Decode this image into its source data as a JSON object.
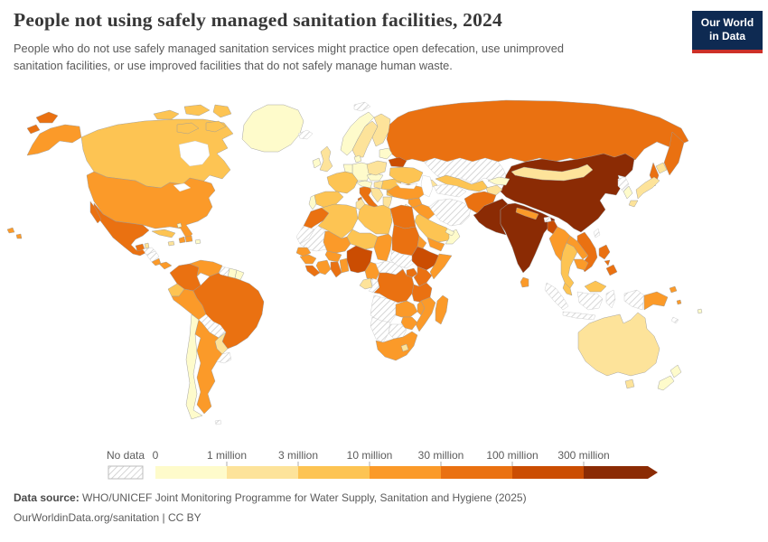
{
  "header": {
    "title": "People not using safely managed sanitation facilities, 2024",
    "subtitle_lines": [
      "People who do not use safely managed sanitation services might practice open defecation, use unimproved",
      "sanitation facilities, or use improved facilities that do not safely manage human waste."
    ],
    "logo": {
      "line1": "Our World",
      "line2": "in Data",
      "bg_color": "#0E2A52",
      "accent_color": "#CD3028"
    }
  },
  "chart_data": {
    "type": "choropleth_map",
    "title": "People not using safely managed sanitation facilities",
    "year": "2024",
    "unit": "people",
    "legend": {
      "no_data_label": "No data",
      "tick_labels": [
        "0",
        "1 million",
        "3 million",
        "10 million",
        "30 million",
        "100 million",
        "300 million"
      ],
      "colors": [
        "#FEFBCB",
        "#FDE39A",
        "#FDC453",
        "#FB9A29",
        "#EA7111",
        "#CB4D02",
        "#8B2B04"
      ],
      "no_data_pattern": "diagonal-hatch",
      "position": "bottom"
    },
    "countries": [
      {
        "name": "Russia",
        "bucket": 4
      },
      {
        "name": "Kazakhstan",
        "bucket": -1
      },
      {
        "name": "China",
        "bucket": 6
      },
      {
        "name": "Mongolia",
        "bucket": 1
      },
      {
        "name": "Canada",
        "bucket": 2
      },
      {
        "name": "United States",
        "bucket": 3
      },
      {
        "name": "Greenland",
        "bucket": 0
      },
      {
        "name": "Svalbard",
        "bucket": -1
      },
      {
        "name": "Iceland",
        "bucket": -1
      },
      {
        "name": "Mexico",
        "bucket": 4
      },
      {
        "name": "Guatemala",
        "bucket": 4
      },
      {
        "name": "Belize",
        "bucket": 1
      },
      {
        "name": "Honduras",
        "bucket": -1
      },
      {
        "name": "Nicaragua",
        "bucket": -1
      },
      {
        "name": "Costa Rica",
        "bucket": 3
      },
      {
        "name": "Panama",
        "bucket": 3
      },
      {
        "name": "Cuba",
        "bucket": 2
      },
      {
        "name": "Jamaica",
        "bucket": 1
      },
      {
        "name": "Haiti",
        "bucket": 3
      },
      {
        "name": "Dominican Republic",
        "bucket": 3
      },
      {
        "name": "Puerto Rico",
        "bucket": 0
      },
      {
        "name": "Bahamas",
        "bucket": 0
      },
      {
        "name": "Colombia",
        "bucket": 4
      },
      {
        "name": "Venezuela",
        "bucket": 3
      },
      {
        "name": "Guyana",
        "bucket": -1
      },
      {
        "name": "Suriname",
        "bucket": 0
      },
      {
        "name": "French Guiana",
        "bucket": 0
      },
      {
        "name": "Ecuador",
        "bucket": 2
      },
      {
        "name": "Peru",
        "bucket": 3
      },
      {
        "name": "Brazil",
        "bucket": 4
      },
      {
        "name": "Bolivia",
        "bucket": -1
      },
      {
        "name": "Paraguay",
        "bucket": 1
      },
      {
        "name": "Chile",
        "bucket": 0
      },
      {
        "name": "Argentina",
        "bucket": 3
      },
      {
        "name": "Uruguay",
        "bucket": -1
      },
      {
        "name": "Falkland Islands",
        "bucket": -1
      },
      {
        "name": "Norway",
        "bucket": 0
      },
      {
        "name": "Sweden",
        "bucket": 1
      },
      {
        "name": "Finland",
        "bucket": 1
      },
      {
        "name": "United Kingdom",
        "bucket": 1
      },
      {
        "name": "Ireland",
        "bucket": 0
      },
      {
        "name": "Denmark",
        "bucket": 0
      },
      {
        "name": "Germany",
        "bucket": 0
      },
      {
        "name": "Benelux",
        "bucket": 0
      },
      {
        "name": "France",
        "bucket": 2
      },
      {
        "name": "Spain",
        "bucket": 2
      },
      {
        "name": "Portugal",
        "bucket": 0
      },
      {
        "name": "Italy",
        "bucket": 4
      },
      {
        "name": "Switzerland",
        "bucket": 0
      },
      {
        "name": "Czechia",
        "bucket": 0
      },
      {
        "name": "Poland",
        "bucket": 1
      },
      {
        "name": "Hungary",
        "bucket": 1
      },
      {
        "name": "Serbia",
        "bucket": 1
      },
      {
        "name": "Greece",
        "bucket": 1
      },
      {
        "name": "Romania",
        "bucket": 2
      },
      {
        "name": "Bulgaria",
        "bucket": 2
      },
      {
        "name": "Baltic states",
        "bucket": 0
      },
      {
        "name": "Belarus",
        "bucket": 5
      },
      {
        "name": "Ukraine",
        "bucket": 2
      },
      {
        "name": "Turkey",
        "bucket": 3
      },
      {
        "name": "Syria",
        "bucket": 3
      },
      {
        "name": "Jordan",
        "bucket": 0
      },
      {
        "name": "Iraq",
        "bucket": 3
      },
      {
        "name": "Iran",
        "bucket": -1
      },
      {
        "name": "Saudi Arabia",
        "bucket": 2
      },
      {
        "name": "Yemen",
        "bucket": 3
      },
      {
        "name": "Oman",
        "bucket": 0
      },
      {
        "name": "United Arab Emirates",
        "bucket": 0
      },
      {
        "name": "Azerbaijan",
        "bucket": 1
      },
      {
        "name": "Uzbekistan",
        "bucket": 2
      },
      {
        "name": "Turkmenistan",
        "bucket": -1
      },
      {
        "name": "Kyrgyzstan",
        "bucket": 0
      },
      {
        "name": "Tajikistan",
        "bucket": 1
      },
      {
        "name": "Afghanistan",
        "bucket": 4
      },
      {
        "name": "Pakistan",
        "bucket": 6
      },
      {
        "name": "India",
        "bucket": 6
      },
      {
        "name": "Nepal",
        "bucket": 3
      },
      {
        "name": "Bhutan",
        "bucket": -1
      },
      {
        "name": "Bangladesh",
        "bucket": 5
      },
      {
        "name": "Sri Lanka",
        "bucket": 3
      },
      {
        "name": "Myanmar",
        "bucket": 3
      },
      {
        "name": "Thailand",
        "bucket": 2
      },
      {
        "name": "Laos",
        "bucket": 3
      },
      {
        "name": "Vietnam",
        "bucket": 4
      },
      {
        "name": "Cambodia",
        "bucket": 3
      },
      {
        "name": "Malaysia",
        "bucket": 2
      },
      {
        "name": "Indonesia",
        "bucket": -1
      },
      {
        "name": "Philippines",
        "bucket": 4
      },
      {
        "name": "Taiwan",
        "bucket": -1
      },
      {
        "name": "North Korea",
        "bucket": -1
      },
      {
        "name": "South Korea",
        "bucket": 0
      },
      {
        "name": "Japan",
        "bucket": 1
      },
      {
        "name": "Papua New Guinea",
        "bucket": 3
      },
      {
        "name": "Solomon Islands",
        "bucket": 3
      },
      {
        "name": "Fiji",
        "bucket": 0
      },
      {
        "name": "New Caledonia",
        "bucket": -1
      },
      {
        "name": "Australia",
        "bucket": 1
      },
      {
        "name": "New Zealand",
        "bucket": 0
      },
      {
        "name": "Morocco",
        "bucket": 4
      },
      {
        "name": "Western Sahara",
        "bucket": -1
      },
      {
        "name": "Algeria",
        "bucket": 2
      },
      {
        "name": "Tunisia",
        "bucket": 1
      },
      {
        "name": "Libya",
        "bucket": 2
      },
      {
        "name": "Egypt",
        "bucket": 4
      },
      {
        "name": "Mauritania",
        "bucket": -1
      },
      {
        "name": "Mali",
        "bucket": 3
      },
      {
        "name": "Niger",
        "bucket": 2
      },
      {
        "name": "Chad",
        "bucket": 3
      },
      {
        "name": "Sudan",
        "bucket": 4
      },
      {
        "name": "Eritrea",
        "bucket": 3
      },
      {
        "name": "Senegal",
        "bucket": 3
      },
      {
        "name": "Guinea",
        "bucket": 3
      },
      {
        "name": "Liberia",
        "bucket": 4
      },
      {
        "name": "Cote d'Ivoire",
        "bucket": 3
      },
      {
        "name": "Burkina Faso",
        "bucket": 3
      },
      {
        "name": "Ghana",
        "bucket": 4
      },
      {
        "name": "Benin",
        "bucket": 3
      },
      {
        "name": "Nigeria",
        "bucket": 5
      },
      {
        "name": "Cameroon",
        "bucket": 3
      },
      {
        "name": "Central African Republic",
        "bucket": -1
      },
      {
        "name": "South Sudan",
        "bucket": -1
      },
      {
        "name": "Ethiopia",
        "bucket": 5
      },
      {
        "name": "Somalia",
        "bucket": 3
      },
      {
        "name": "Uganda",
        "bucket": 4
      },
      {
        "name": "Kenya",
        "bucket": 4
      },
      {
        "name": "Gabon",
        "bucket": 1
      },
      {
        "name": "Congo",
        "bucket": -1
      },
      {
        "name": "DR Congo",
        "bucket": 4
      },
      {
        "name": "Tanzania",
        "bucket": 4
      },
      {
        "name": "Angola",
        "bucket": -1
      },
      {
        "name": "Zambia",
        "bucket": 3
      },
      {
        "name": "Malawi",
        "bucket": 3
      },
      {
        "name": "Mozambique",
        "bucket": 3
      },
      {
        "name": "Zimbabwe",
        "bucket": 3
      },
      {
        "name": "Namibia",
        "bucket": -1
      },
      {
        "name": "Botswana",
        "bucket": -1
      },
      {
        "name": "South Africa",
        "bucket": 3
      },
      {
        "name": "Lesotho",
        "bucket": 1
      },
      {
        "name": "Madagascar",
        "bucket": 3
      }
    ]
  },
  "footer": {
    "source_label": "Data source:",
    "source_text": "WHO/UNICEF Joint Monitoring Programme for Water Supply, Sanitation and Hygiene (2025)",
    "link_text": "OurWorldinData.org/sanitation | CC BY"
  }
}
